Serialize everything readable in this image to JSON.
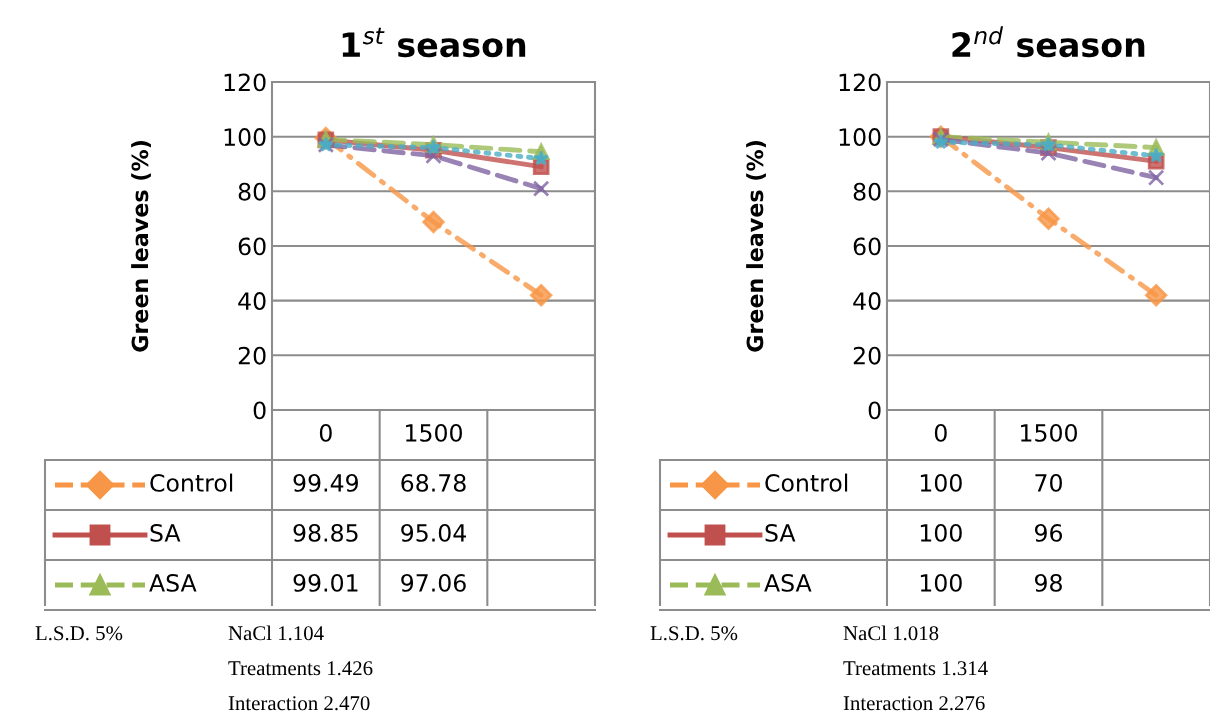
{
  "chart_data": [
    {
      "type": "line",
      "title": "1$^{st}$ season",
      "ylabel": "Green leaves (%)",
      "categories": [
        "0",
        "1500",
        null
      ],
      "ylim": [
        0,
        120
      ],
      "yticks": [
        0,
        20,
        40,
        60,
        80,
        100,
        120
      ],
      "grid": "y",
      "legend": "bottom",
      "tick_labels": "y",
      "series": [
        {
          "name": "Control",
          "color": "#f79646",
          "marker": "diamond",
          "line_style": "dashdot",
          "values": [
            99.49,
            68.78,
            42
          ],
          "value_labels": [
            "99.49",
            "68.78",
            null
          ]
        },
        {
          "name": "SA",
          "color": "#c0504d",
          "marker": "square",
          "line_style": "solid",
          "values": [
            98.85,
            95.04,
            89
          ],
          "value_labels": [
            "98.85",
            "95.04",
            null
          ]
        },
        {
          "name": "ASA",
          "color": "#9bbb59",
          "marker": "triangle",
          "line_style": "dashed",
          "values": [
            99.01,
            97.06,
            94.5
          ],
          "value_labels": [
            "99.01",
            "97.06",
            null
          ]
        },
        {
          "color": "#8064a2",
          "marker": "cross",
          "line_style": "dashed",
          "values": [
            97,
            93,
            81
          ]
        },
        {
          "color": "#4bacc6",
          "marker": "star",
          "line_style": "dotted",
          "values": [
            97,
            96,
            92
          ]
        }
      ],
      "annotations": [
        "L.S.D. 5%",
        "NaCl 1.104",
        "Treatments 1.426",
        "Interaction 2.470"
      ]
    },
    {
      "type": "line",
      "title": "2$^{nd}$ season",
      "ylabel": "Green leaves (%)",
      "categories": [
        "0",
        "1500",
        null
      ],
      "ylim": [
        0,
        120
      ],
      "yticks": [
        0,
        20,
        40,
        60,
        80,
        100,
        120
      ],
      "grid": "y",
      "legend": "bottom",
      "tick_labels": "y",
      "series": [
        {
          "name": "Control",
          "color": "#f79646",
          "marker": "diamond",
          "line_style": "dashdot",
          "values": [
            100,
            70,
            42
          ],
          "value_labels": [
            "100",
            "70",
            null
          ]
        },
        {
          "name": "SA",
          "color": "#c0504d",
          "marker": "square",
          "line_style": "solid",
          "values": [
            100,
            96,
            91
          ],
          "value_labels": [
            "100",
            "96",
            null
          ]
        },
        {
          "name": "ASA",
          "color": "#9bbb59",
          "marker": "triangle",
          "line_style": "dashed",
          "values": [
            100,
            98,
            96
          ],
          "value_labels": [
            "100",
            "98",
            null
          ]
        },
        {
          "color": "#8064a2",
          "marker": "cross",
          "line_style": "dashed",
          "values": [
            99,
            94,
            85
          ]
        },
        {
          "color": "#4bacc6",
          "marker": "star",
          "line_style": "dotted",
          "values": [
            98,
            97,
            93
          ]
        }
      ],
      "annotations": [
        "L.S.D. 5%",
        "NaCl 1.018",
        "Treatments 1.314",
        "Interaction 2.276"
      ]
    }
  ]
}
